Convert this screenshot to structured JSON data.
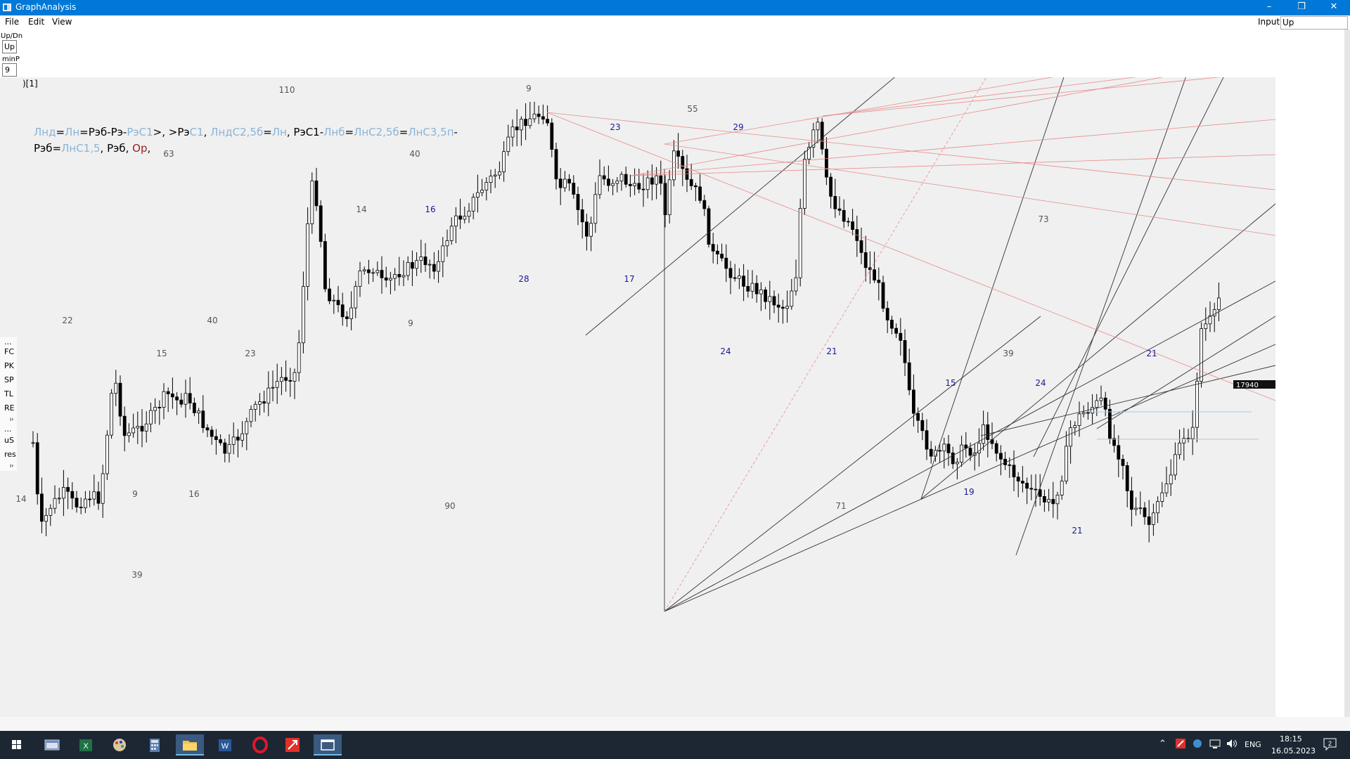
{
  "window": {
    "title": "GraphAnalysis",
    "minimize": "–",
    "restore": "❐",
    "close": "✕"
  },
  "menu": {
    "file": "File",
    "edit": "Edit",
    "view": "View"
  },
  "input": {
    "label": "Input:",
    "value": "Up"
  },
  "left_controls": {
    "updn_label": "Up/Dn",
    "updn_value": "Up",
    "minp_label": "minP",
    "minp_value": "9"
  },
  "chart_title": ")[1]",
  "formula": [
    {
      "text": "Лнд",
      "color": "#8ab4d8"
    },
    {
      "text": "=",
      "color": "#000000"
    },
    {
      "text": "Лн",
      "color": "#8ab4d8"
    },
    {
      "text": "=Рэб-Рэ-",
      "color": "#000000"
    },
    {
      "text": "РэС1",
      "color": "#8ab4d8"
    },
    {
      "text": ">, >Рэ",
      "color": "#000000"
    },
    {
      "text": "С1",
      "color": "#8ab4d8"
    },
    {
      "text": ", ",
      "color": "#000000"
    },
    {
      "text": "ЛндС2,5б",
      "color": "#8ab4d8"
    },
    {
      "text": "=",
      "color": "#000000"
    },
    {
      "text": "Лн",
      "color": "#8ab4d8"
    },
    {
      "text": ", РэС1-",
      "color": "#000000"
    },
    {
      "text": "Лнб",
      "color": "#8ab4d8"
    },
    {
      "text": "=",
      "color": "#000000"
    },
    {
      "text": "ЛнС2,5б",
      "color": "#8ab4d8"
    },
    {
      "text": "=",
      "color": "#000000"
    },
    {
      "text": "ЛнС3,5п",
      "color": "#8ab4d8"
    },
    {
      "text": "-Рэб=",
      "color": "#000000"
    },
    {
      "text": "ЛнС1,5",
      "color": "#8ab4d8"
    },
    {
      "text": ", Рэб, ",
      "color": "#000000"
    },
    {
      "text": "Ор",
      "color": "#a02020"
    },
    {
      "text": ",",
      "color": "#000000"
    }
  ],
  "side_items": [
    "...",
    "FC",
    "PK",
    "SP",
    "TL",
    "RE",
    "ı›",
    "...",
    "uS",
    "res",
    "ı›"
  ],
  "price_tag": "17940",
  "price_tag_y": 17940,
  "count_labels": [
    {
      "text": "110",
      "color": "#555555"
    },
    {
      "text": "9",
      "color": "#555555"
    },
    {
      "text": "55",
      "color": "#555555"
    },
    {
      "text": "23",
      "color": "#1a1a9a"
    },
    {
      "text": "29",
      "color": "#1a1a9a"
    },
    {
      "text": "63",
      "color": "#555555"
    },
    {
      "text": "40",
      "color": "#555555"
    },
    {
      "text": "14",
      "color": "#555555"
    },
    {
      "text": "16",
      "color": "#1a1a9a"
    },
    {
      "text": "73",
      "color": "#555555"
    },
    {
      "text": "28",
      "color": "#1a1a9a"
    },
    {
      "text": "17",
      "color": "#1a1a9a"
    },
    {
      "text": "22",
      "color": "#555555"
    },
    {
      "text": "40",
      "color": "#555555"
    },
    {
      "text": "9",
      "color": "#555555"
    },
    {
      "text": "24",
      "color": "#1a1a9a"
    },
    {
      "text": "21",
      "color": "#1a1a9a"
    },
    {
      "text": "39",
      "color": "#555555"
    },
    {
      "text": "21",
      "color": "#1a1a9a"
    },
    {
      "text": "15",
      "color": "#555555"
    },
    {
      "text": "23",
      "color": "#555555"
    },
    {
      "text": "15",
      "color": "#1a1a9a"
    },
    {
      "text": "24",
      "color": "#1a1a9a"
    },
    {
      "text": "9",
      "color": "#555555"
    },
    {
      "text": "16",
      "color": "#555555"
    },
    {
      "text": "19",
      "color": "#1a1a9a"
    },
    {
      "text": "14",
      "color": "#555555"
    },
    {
      "text": "90",
      "color": "#555555"
    },
    {
      "text": "71",
      "color": "#555555"
    },
    {
      "text": "21",
      "color": "#1a1a9a"
    },
    {
      "text": "39",
      "color": "#555555"
    }
  ],
  "tray": {
    "lang": "ENG",
    "time": "18:15",
    "date": "16.05.2023",
    "notif": "2"
  },
  "taskbar_icons": [
    "windows-start-icon",
    "explorer-window-icon",
    "excel-icon",
    "paint-icon",
    "calculator-icon",
    "file-explorer-icon",
    "word-icon",
    "opera-icon",
    "trading-app-icon",
    "graphanalysis-icon"
  ]
}
